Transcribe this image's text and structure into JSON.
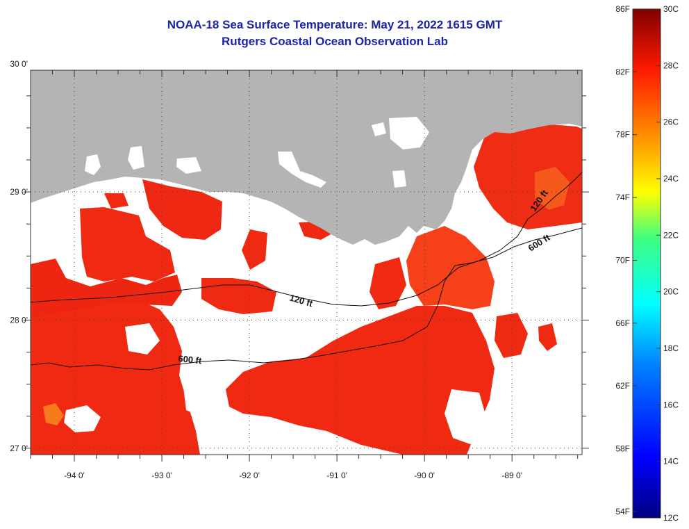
{
  "title": {
    "line1": "NOAA-18 Sea Surface Temperature:  May 21, 2022 1615 GMT",
    "line2": "Rutgers Coastal Ocean Observation Lab"
  },
  "map": {
    "lon_range": [
      -94.5,
      -88.2
    ],
    "lat_range": [
      26.95,
      29.95
    ],
    "lon_ticks": [
      {
        "value": -94,
        "label": "-94 0'"
      },
      {
        "value": -93,
        "label": "-93 0'"
      },
      {
        "value": -92,
        "label": "-92 0'"
      },
      {
        "value": -91,
        "label": "-91 0'"
      },
      {
        "value": -90,
        "label": "-90 0'"
      },
      {
        "value": -89,
        "label": "-89 0'"
      }
    ],
    "lat_ticks": [
      {
        "value": 30,
        "label": "30 0'"
      },
      {
        "value": 29,
        "label": "29 0'"
      },
      {
        "value": 28,
        "label": "28 0'"
      },
      {
        "value": 27,
        "label": "27 0'"
      }
    ],
    "contour_labels": [
      {
        "text": "120 ft"
      },
      {
        "text": "600 ft"
      },
      {
        "text": "120 ft"
      },
      {
        "text": "600 ft"
      }
    ],
    "colors": {
      "land": "#b4b4b4",
      "cloud": "#ffffff",
      "sst_primary": "#f02a12",
      "sst_warm": "#e8160c",
      "sst_cool": "#f5661a"
    }
  },
  "colorbar": {
    "min_c": 12,
    "max_c": 30,
    "fahrenheit_labels": [
      "86F",
      "82F",
      "78F",
      "74F",
      "70F",
      "66F",
      "62F",
      "58F",
      "54F"
    ],
    "celsius_labels": [
      "30C",
      "28C",
      "26C",
      "24C",
      "22C",
      "20C",
      "18C",
      "16C",
      "14C",
      "12C"
    ]
  }
}
